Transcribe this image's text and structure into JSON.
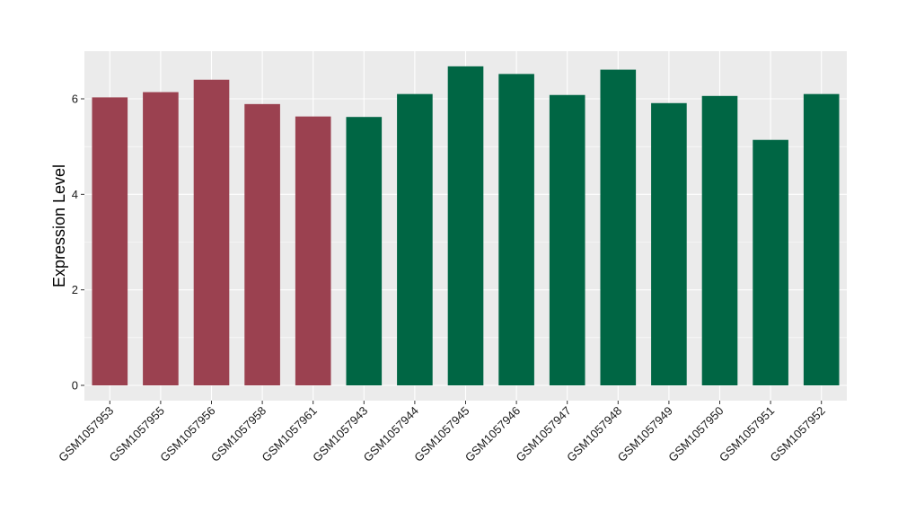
{
  "chart_data": {
    "type": "bar",
    "title": "",
    "xlabel": "",
    "ylabel": "Expression Level",
    "ylim": [
      0,
      7
    ],
    "yticks": [
      0,
      2,
      4,
      6
    ],
    "grid": true,
    "legend": "none",
    "colors": {
      "group_a": "#9b4150",
      "group_b": "#006644",
      "panel_bg": "#ebebeb",
      "grid": "#ffffff"
    },
    "categories": [
      "GSM1057953",
      "GSM1057955",
      "GSM1057956",
      "GSM1057958",
      "GSM1057961",
      "GSM1057943",
      "GSM1057944",
      "GSM1057945",
      "GSM1057946",
      "GSM1057947",
      "GSM1057948",
      "GSM1057949",
      "GSM1057950",
      "GSM1057951",
      "GSM1057952"
    ],
    "values": [
      6.03,
      6.14,
      6.4,
      5.89,
      5.63,
      5.62,
      6.1,
      6.68,
      6.52,
      6.08,
      6.61,
      5.91,
      6.06,
      5.14,
      6.1
    ],
    "bar_colors": [
      "#9b4150",
      "#9b4150",
      "#9b4150",
      "#9b4150",
      "#9b4150",
      "#006644",
      "#006644",
      "#006644",
      "#006644",
      "#006644",
      "#006644",
      "#006644",
      "#006644",
      "#006644",
      "#006644"
    ]
  }
}
